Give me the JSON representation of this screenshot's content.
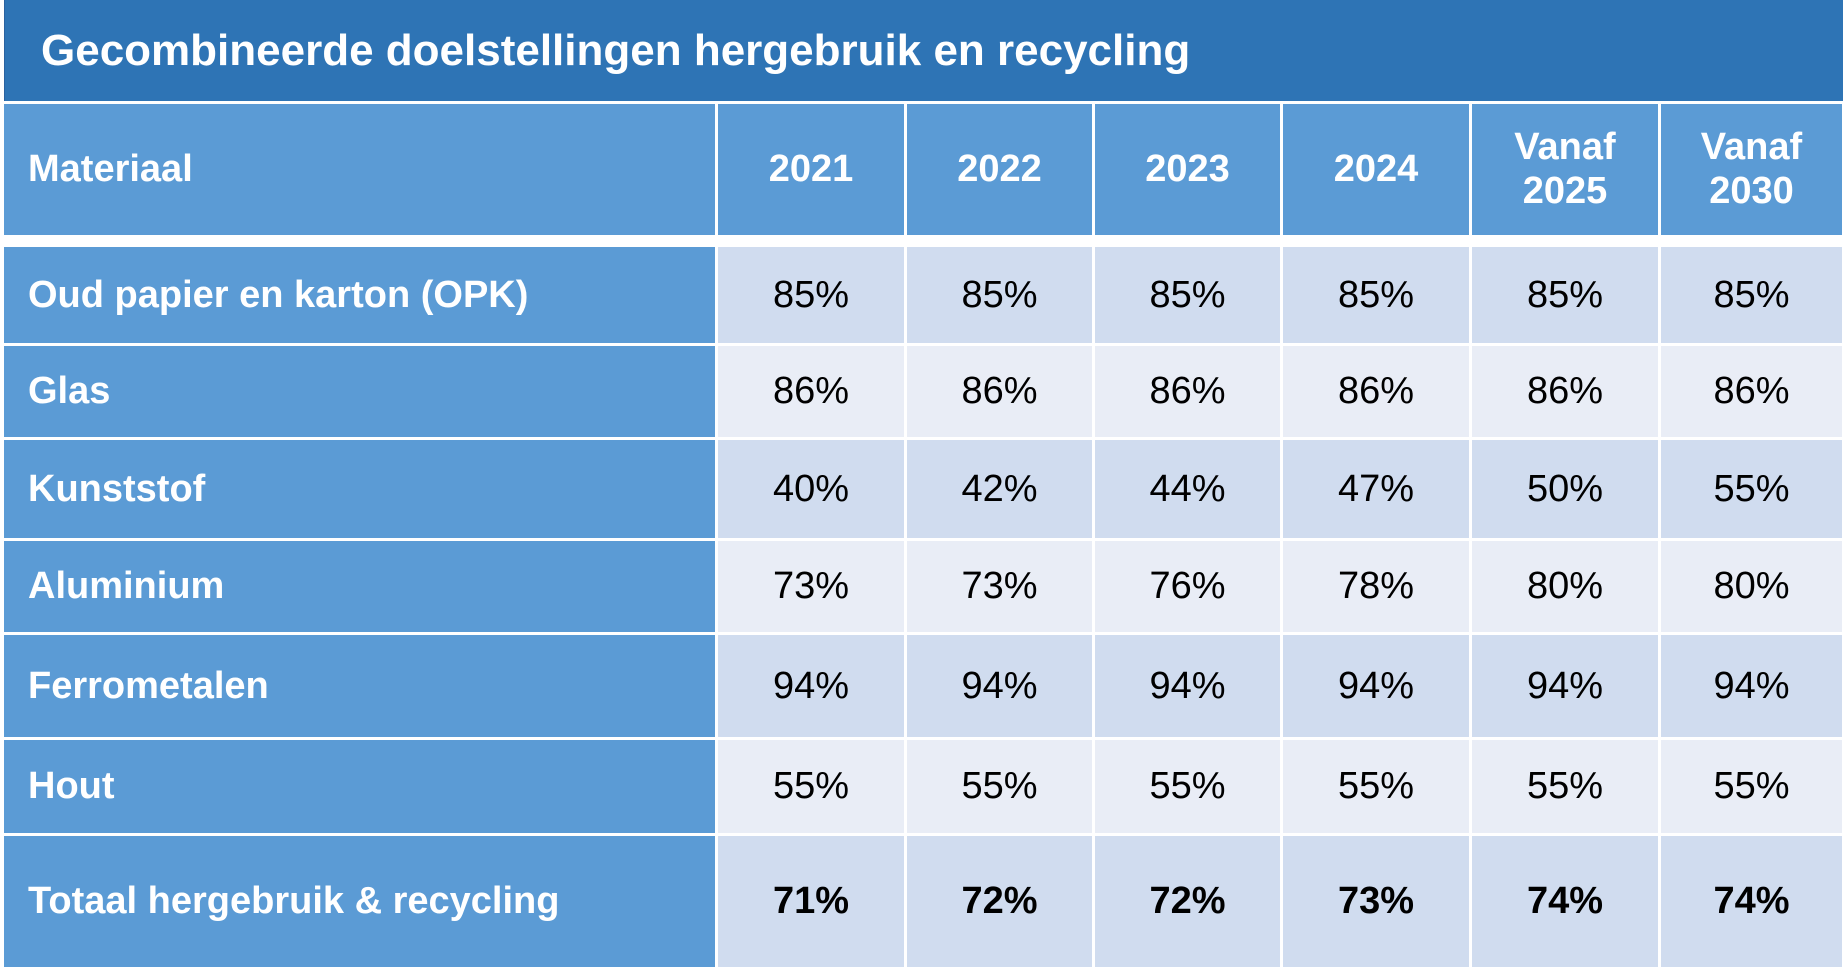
{
  "title": "Gecombineerde doelstellingen hergebruik en recycling",
  "table": {
    "header": {
      "material": "Materiaal",
      "years": [
        "2021",
        "2022",
        "2023",
        "2024",
        "Vanaf 2025",
        "Vanaf 2030"
      ]
    },
    "rows": [
      {
        "label": "Oud papier en karton (OPK)",
        "values": [
          "85%",
          "85%",
          "85%",
          "85%",
          "85%",
          "85%"
        ]
      },
      {
        "label": "Glas",
        "values": [
          "86%",
          "86%",
          "86%",
          "86%",
          "86%",
          "86%"
        ]
      },
      {
        "label": "Kunststof",
        "values": [
          "40%",
          "42%",
          "44%",
          "47%",
          "50%",
          "55%"
        ]
      },
      {
        "label": "Aluminium",
        "values": [
          "73%",
          "73%",
          "76%",
          "78%",
          "80%",
          "80%"
        ]
      },
      {
        "label": "Ferrometalen",
        "values": [
          "94%",
          "94%",
          "94%",
          "94%",
          "94%",
          "94%"
        ]
      },
      {
        "label": "Hout",
        "values": [
          "55%",
          "55%",
          "55%",
          "55%",
          "55%",
          "55%"
        ]
      },
      {
        "label": "Totaal hergebruik & recycling",
        "values": [
          "71%",
          "72%",
          "72%",
          "73%",
          "74%",
          "74%"
        ],
        "emphasis": true
      }
    ]
  },
  "colors": {
    "title_bar": "#2e74b5",
    "header_and_labels": "#5b9bd5",
    "row_odd": "#d0dcef",
    "row_even": "#e9edf6"
  }
}
